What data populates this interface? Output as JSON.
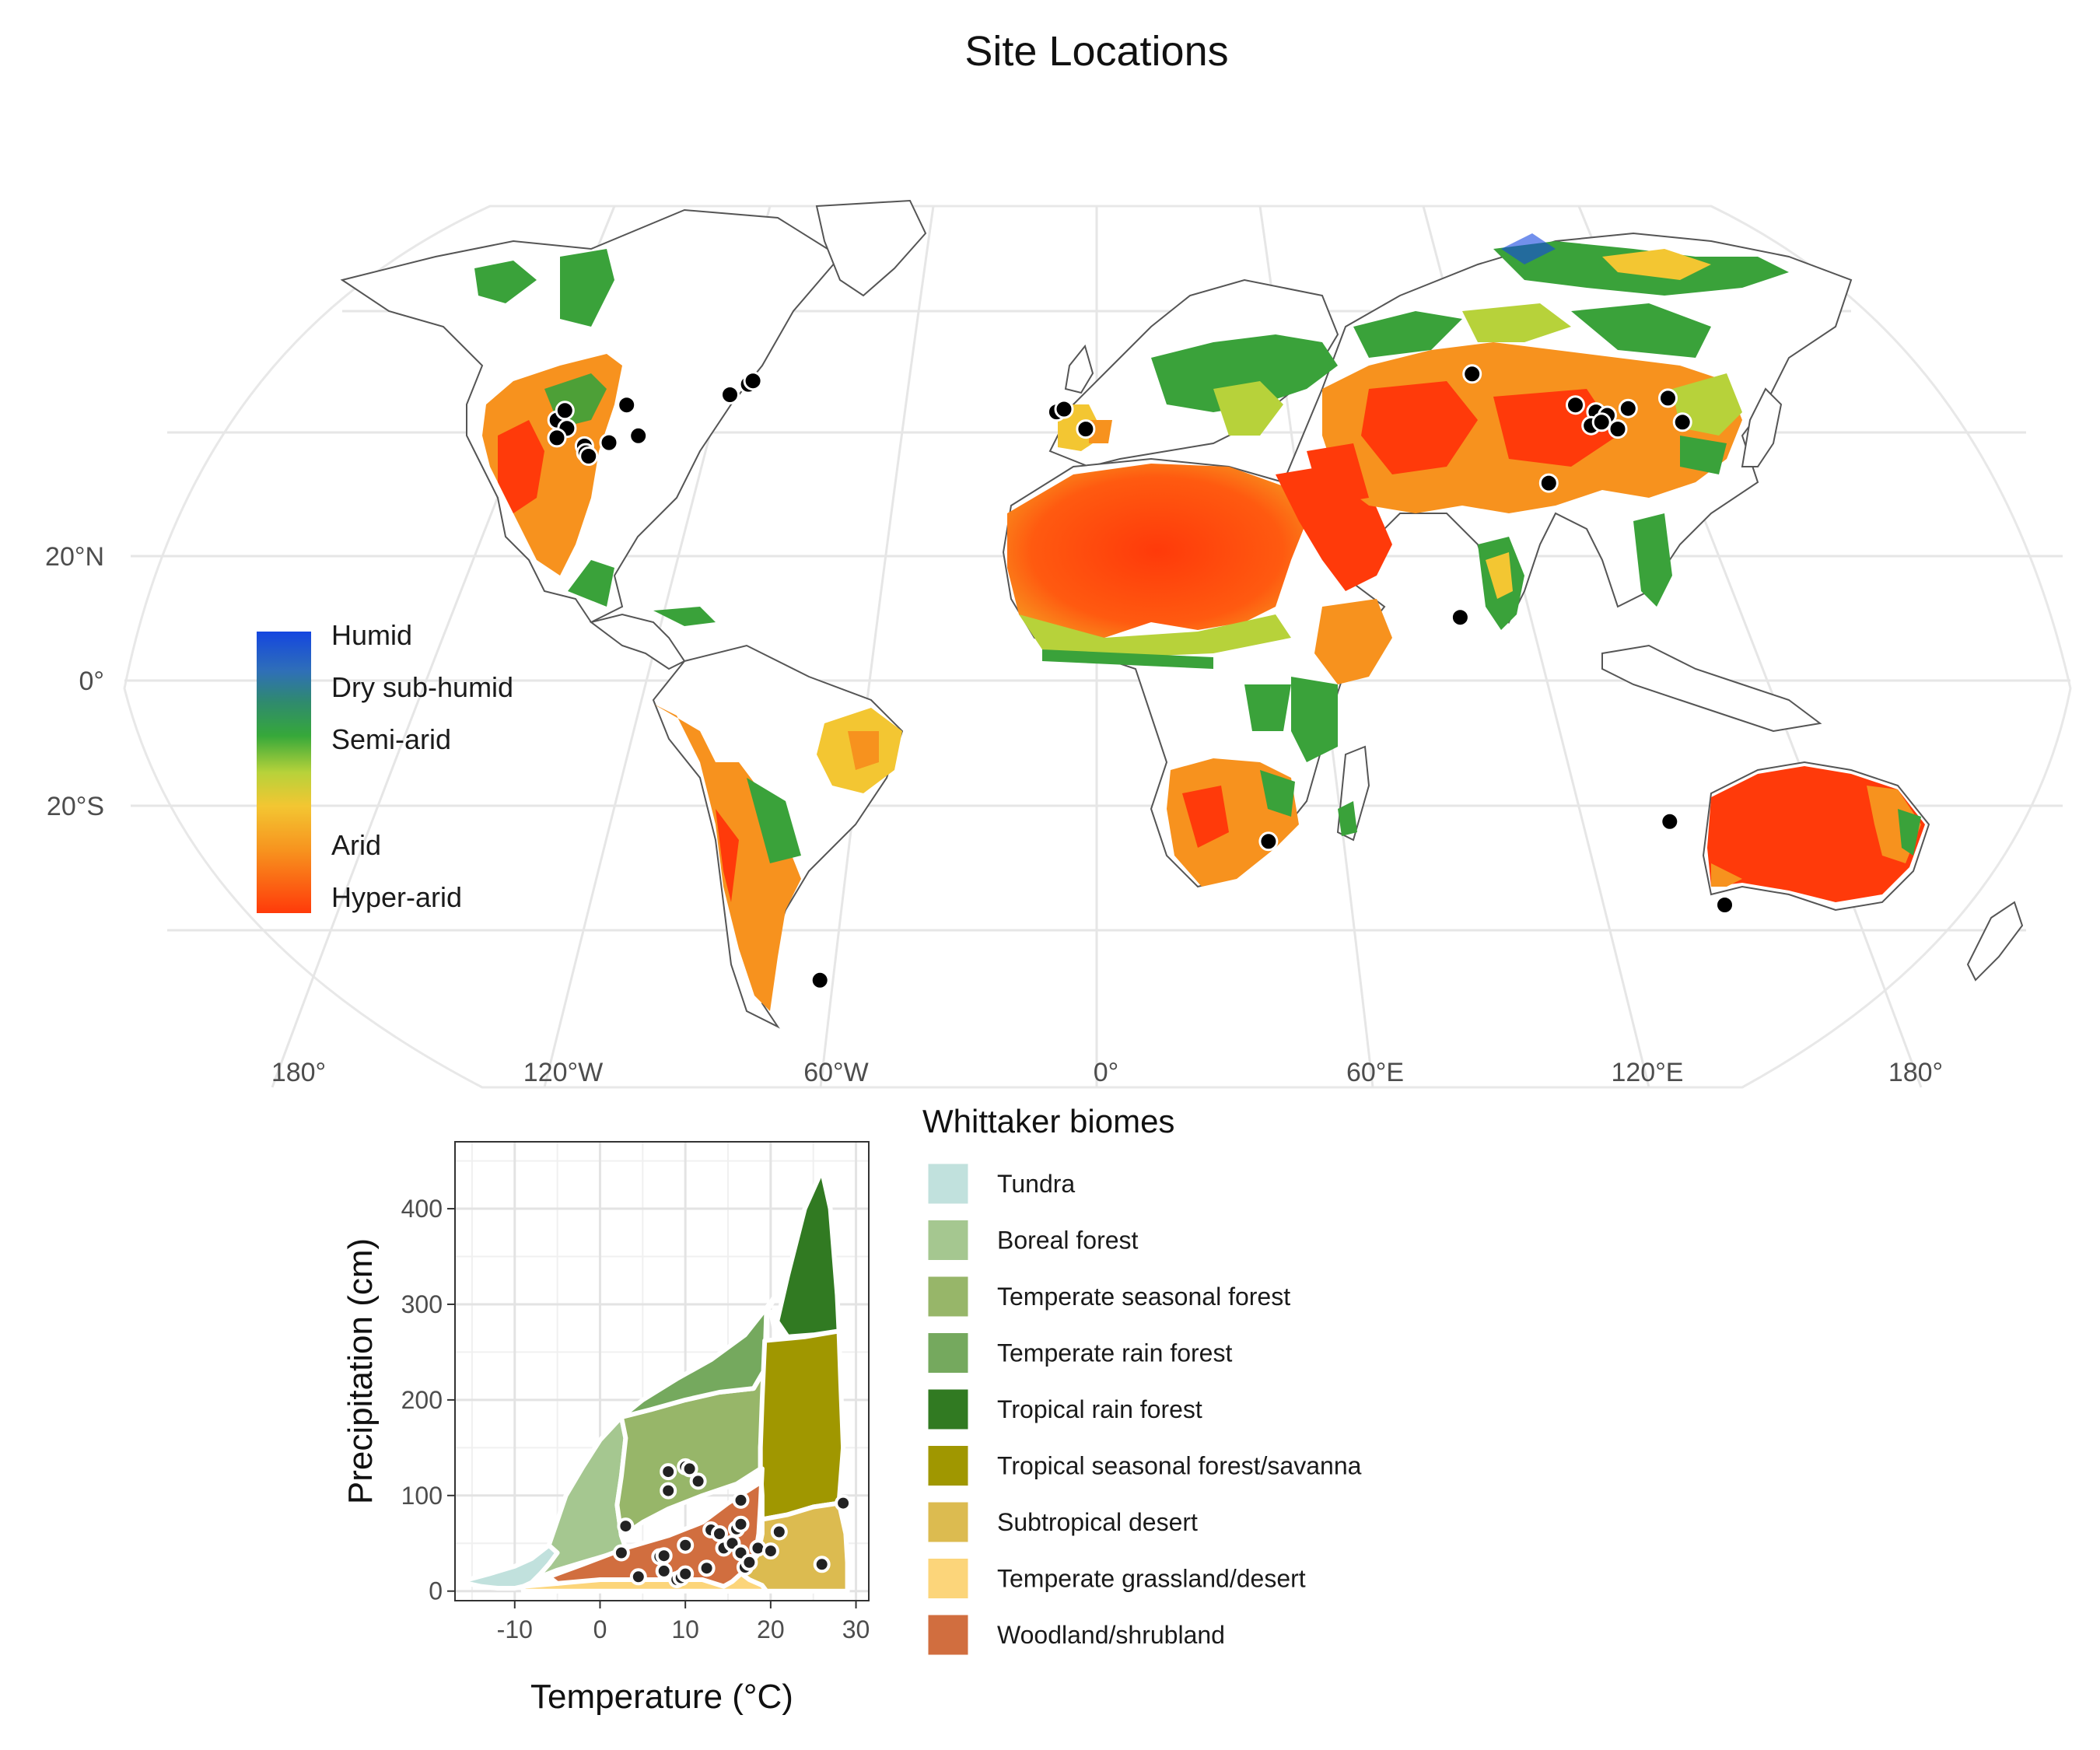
{
  "title": "Site Locations",
  "map": {
    "projection": "Robinson",
    "lat_labels": [
      "20°N",
      "0°",
      "20°S"
    ],
    "lon_labels": [
      "180°",
      "120°W",
      "60°W",
      "0°",
      "60°E",
      "120°E",
      "180°"
    ],
    "aridity_legend": {
      "labels": [
        "Humid",
        "Dry sub-humid",
        "Semi-arid",
        "Arid",
        "Hyper-arid"
      ],
      "colors": [
        "#1446e0",
        "#2f8a6e",
        "#36a83a",
        "#b7d23a",
        "#f3c632",
        "#f7921e",
        "#ff3a0a"
      ]
    },
    "colors": {
      "hyper_arid": "#ff3a0a",
      "arid": "#f7921e",
      "semi_arid_dry": "#f3c632",
      "semi_arid": "#3aa23a",
      "humid": "#1446e0",
      "coastline": "#555555",
      "graticule": "#e6e6e6",
      "site_point": "#000000"
    },
    "sites": [
      {
        "lon": -123.5,
        "lat": 39.8
      },
      {
        "lon": -122.0,
        "lat": 41.2
      },
      {
        "lon": -121.0,
        "lat": 38.6
      },
      {
        "lon": -123.0,
        "lat": 37.2
      },
      {
        "lon": -116.5,
        "lat": 36.0
      },
      {
        "lon": -116.0,
        "lat": 35.0
      },
      {
        "lon": -115.3,
        "lat": 34.5
      },
      {
        "lon": -111.0,
        "lat": 36.5
      },
      {
        "lon": -108.0,
        "lat": 42.0
      },
      {
        "lon": -104.5,
        "lat": 37.5
      },
      {
        "lon": -84.5,
        "lat": 43.5
      },
      {
        "lon": -80.5,
        "lat": 45.0
      },
      {
        "lon": -79.5,
        "lat": 45.5
      },
      {
        "lon": -9.2,
        "lat": 41.0
      },
      {
        "lon": -7.5,
        "lat": 41.4
      },
      {
        "lon": -2.5,
        "lat": 38.5
      },
      {
        "lon": 38.5,
        "lat": -25.0
      },
      {
        "lon": -64.0,
        "lat": -45.5
      },
      {
        "lon": 87.0,
        "lat": 46.5
      },
      {
        "lon": 102.0,
        "lat": 30.5
      },
      {
        "lon": 110.0,
        "lat": 42.0
      },
      {
        "lon": 114.5,
        "lat": 41.0
      },
      {
        "lon": 113.0,
        "lat": 39.0
      },
      {
        "lon": 117.0,
        "lat": 40.5
      },
      {
        "lon": 115.5,
        "lat": 39.5
      },
      {
        "lon": 119.0,
        "lat": 38.5
      },
      {
        "lon": 122.0,
        "lat": 41.5
      },
      {
        "lon": 131.5,
        "lat": 43.0
      },
      {
        "lon": 134.0,
        "lat": 39.5
      },
      {
        "lon": 80.5,
        "lat": 10.0
      },
      {
        "lon": 128.0,
        "lat": -22.0
      },
      {
        "lon": 142.5,
        "lat": -34.5
      }
    ]
  },
  "legend_title": "Whittaker biomes",
  "biomes": [
    {
      "name": "Tundra",
      "color": "#C1E1DD"
    },
    {
      "name": "Boreal forest",
      "color": "#A5C790"
    },
    {
      "name": "Temperate seasonal forest",
      "color": "#97B669"
    },
    {
      "name": "Temperate rain forest",
      "color": "#75A95E"
    },
    {
      "name": "Tropical rain forest",
      "color": "#317A22"
    },
    {
      "name": "Tropical seasonal forest/savanna",
      "color": "#A09700"
    },
    {
      "name": "Subtropical desert",
      "color": "#DCBB50"
    },
    {
      "name": "Temperate grassland/desert",
      "color": "#FCD57A"
    },
    {
      "name": "Woodland/shrubland",
      "color": "#D16E3F"
    }
  ],
  "chart_data": {
    "type": "scatter",
    "xlabel": "Temperature (°C)",
    "ylabel": "Precipitation (cm)",
    "xlim": [
      -17,
      31.5
    ],
    "ylim": [
      -10,
      470
    ],
    "x_ticks": [
      -10,
      0,
      10,
      20,
      30
    ],
    "x_tick_labels": [
      "-10",
      "0",
      "10",
      "20",
      "30"
    ],
    "y_ticks": [
      0,
      100,
      200,
      300,
      400
    ],
    "y_tick_labels": [
      "0",
      "100",
      "200",
      "300",
      "400"
    ],
    "grid": true,
    "biome_polygons": [
      {
        "name": "Tundra",
        "points": [
          [
            -15.5,
            12
          ],
          [
            -13,
            18
          ],
          [
            -10,
            26
          ],
          [
            -8,
            34
          ],
          [
            -6,
            48
          ],
          [
            -5,
            40
          ],
          [
            -6,
            28
          ],
          [
            -7,
            18
          ],
          [
            -8,
            9
          ],
          [
            -9,
            5
          ],
          [
            -10,
            3
          ],
          [
            -12,
            3
          ],
          [
            -14,
            5
          ],
          [
            -15.5,
            8
          ]
        ]
      },
      {
        "name": "Boreal forest",
        "points": [
          [
            -8,
            9
          ],
          [
            -7,
            18
          ],
          [
            -6,
            28
          ],
          [
            -5,
            40
          ],
          [
            -6,
            48
          ],
          [
            -4,
            100
          ],
          [
            -2,
            130
          ],
          [
            0,
            158
          ],
          [
            2.5,
            182
          ],
          [
            3,
            160
          ],
          [
            2.5,
            120
          ],
          [
            2,
            90
          ],
          [
            2.5,
            58
          ],
          [
            3,
            45
          ],
          [
            1,
            38
          ],
          [
            -2,
            30
          ],
          [
            -5,
            22
          ],
          [
            -7,
            15
          ]
        ]
      },
      {
        "name": "Temperate seasonal forest",
        "points": [
          [
            2.5,
            182
          ],
          [
            6,
            190
          ],
          [
            10,
            200
          ],
          [
            14,
            208
          ],
          [
            18,
            212
          ],
          [
            19.3,
            232
          ],
          [
            19,
            180
          ],
          [
            18.8,
            150
          ],
          [
            18.8,
            128
          ],
          [
            16,
            112
          ],
          [
            12,
            100
          ],
          [
            8,
            86
          ],
          [
            5,
            72
          ],
          [
            3,
            60
          ],
          [
            2.5,
            58
          ],
          [
            2,
            90
          ],
          [
            2.5,
            120
          ],
          [
            3,
            160
          ]
        ]
      },
      {
        "name": "Temperate rain forest",
        "points": [
          [
            2.5,
            182
          ],
          [
            5,
            200
          ],
          [
            9,
            222
          ],
          [
            13,
            242
          ],
          [
            17,
            268
          ],
          [
            20,
            302
          ],
          [
            22,
            328
          ],
          [
            19.5,
            292
          ],
          [
            19.3,
            232
          ],
          [
            18,
            212
          ],
          [
            14,
            208
          ],
          [
            10,
            200
          ],
          [
            6,
            190
          ]
        ]
      },
      {
        "name": "Tropical rain forest",
        "points": [
          [
            20,
            292
          ],
          [
            20.5,
            272
          ],
          [
            22,
            330
          ],
          [
            24,
            400
          ],
          [
            26,
            440
          ],
          [
            27,
            400
          ],
          [
            27.8,
            310
          ],
          [
            28,
            272
          ],
          [
            25,
            268
          ],
          [
            22,
            266
          ]
        ]
      },
      {
        "name": "Tropical seasonal forest/savanna",
        "points": [
          [
            19.3,
            262
          ],
          [
            19,
            200
          ],
          [
            18.8,
            150
          ],
          [
            18.8,
            128
          ],
          [
            19,
            100
          ],
          [
            19,
            75
          ],
          [
            22,
            80
          ],
          [
            25,
            88
          ],
          [
            28,
            92
          ],
          [
            28.5,
            150
          ],
          [
            28.2,
            220
          ],
          [
            28,
            272
          ],
          [
            24,
            266
          ]
        ]
      },
      {
        "name": "Subtropical desert",
        "points": [
          [
            14.5,
            0
          ],
          [
            15.5,
            10
          ],
          [
            17,
            22
          ],
          [
            18.5,
            38
          ],
          [
            19,
            60
          ],
          [
            19,
            75
          ],
          [
            22,
            80
          ],
          [
            25,
            88
          ],
          [
            28,
            92
          ],
          [
            28.8,
            60
          ],
          [
            29,
            30
          ],
          [
            29,
            0
          ]
        ]
      },
      {
        "name": "Temperate grassland/desert",
        "points": [
          [
            -9,
            5
          ],
          [
            -5,
            8
          ],
          [
            0,
            14
          ],
          [
            5,
            20
          ],
          [
            10,
            24
          ],
          [
            14,
            25
          ],
          [
            16,
            22
          ],
          [
            17.5,
            12
          ],
          [
            19,
            6
          ],
          [
            19.5,
            0
          ],
          [
            -9,
            0
          ]
        ]
      },
      {
        "name": "Woodland/shrubland",
        "points": [
          [
            -6,
            15
          ],
          [
            -2,
            28
          ],
          [
            3,
            45
          ],
          [
            8,
            58
          ],
          [
            12,
            72
          ],
          [
            15,
            92
          ],
          [
            18.5,
            112
          ],
          [
            19,
            128
          ],
          [
            18.8,
            90
          ],
          [
            18.6,
            60
          ],
          [
            18.2,
            38
          ],
          [
            17,
            22
          ],
          [
            15.5,
            10
          ],
          [
            14.5,
            5
          ],
          [
            12,
            12
          ],
          [
            8,
            12
          ],
          [
            4,
            12
          ],
          [
            0,
            12
          ],
          [
            -5,
            8
          ]
        ]
      }
    ],
    "points": [
      {
        "x": 2.5,
        "y": 40
      },
      {
        "x": 3,
        "y": 68
      },
      {
        "x": 4.5,
        "y": 15
      },
      {
        "x": 7,
        "y": 36
      },
      {
        "x": 7.5,
        "y": 37
      },
      {
        "x": 7.5,
        "y": 21
      },
      {
        "x": 8,
        "y": 105
      },
      {
        "x": 8,
        "y": 125
      },
      {
        "x": 9,
        "y": 12
      },
      {
        "x": 9.5,
        "y": 14
      },
      {
        "x": 10,
        "y": 18
      },
      {
        "x": 10,
        "y": 48
      },
      {
        "x": 10,
        "y": 130
      },
      {
        "x": 10.5,
        "y": 128
      },
      {
        "x": 11.5,
        "y": 115
      },
      {
        "x": 12.5,
        "y": 24
      },
      {
        "x": 13,
        "y": 64
      },
      {
        "x": 14,
        "y": 60
      },
      {
        "x": 14.5,
        "y": 45
      },
      {
        "x": 15.5,
        "y": 50
      },
      {
        "x": 16,
        "y": 65
      },
      {
        "x": 16.5,
        "y": 40
      },
      {
        "x": 16.5,
        "y": 95
      },
      {
        "x": 16.5,
        "y": 70
      },
      {
        "x": 17,
        "y": 25
      },
      {
        "x": 17.5,
        "y": 30
      },
      {
        "x": 18.5,
        "y": 45
      },
      {
        "x": 20,
        "y": 42
      },
      {
        "x": 21,
        "y": 62
      },
      {
        "x": 26,
        "y": 28
      },
      {
        "x": 28.5,
        "y": 92
      }
    ]
  }
}
